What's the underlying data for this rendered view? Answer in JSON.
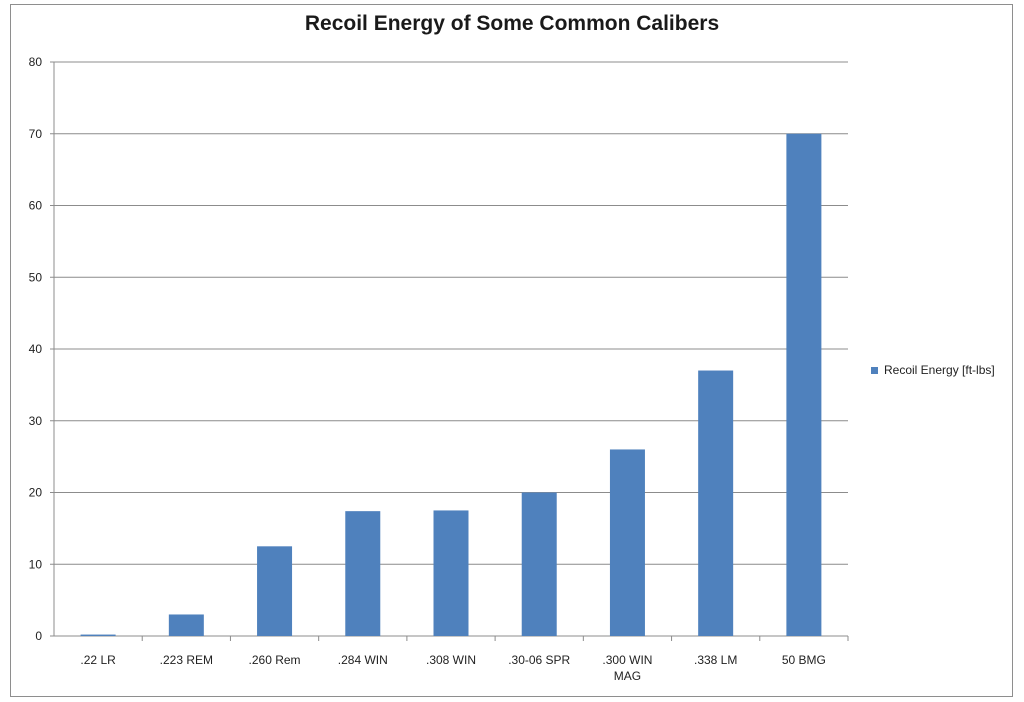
{
  "chart_data": {
    "type": "bar",
    "title": "Recoil Energy of Some Common Calibers",
    "xlabel": "",
    "ylabel": "",
    "categories": [
      ".22 LR",
      ".223 REM",
      ".260 Rem",
      ".284 WIN",
      ".308 WIN",
      ".30-06 SPR",
      ".300 WIN MAG",
      ".338 LM",
      "50 BMG"
    ],
    "series": [
      {
        "name": "Recoil Energy [ft-lbs]",
        "color": "#4f81bd",
        "values": [
          0.2,
          3,
          12.5,
          17.4,
          17.5,
          20,
          26,
          37,
          70
        ]
      }
    ],
    "ylim": [
      0,
      80
    ],
    "yticks": [
      0,
      10,
      20,
      30,
      40,
      50,
      60,
      70,
      80
    ],
    "grid": true,
    "legend_position": "right"
  }
}
